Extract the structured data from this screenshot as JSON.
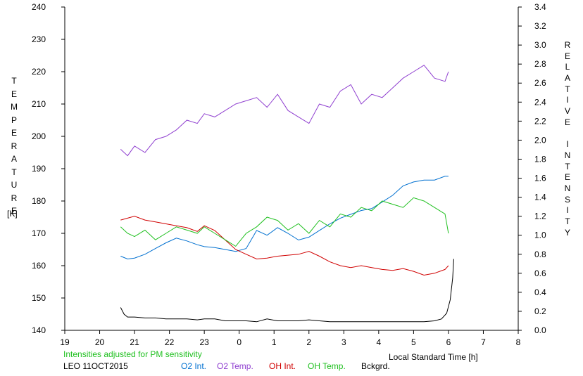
{
  "chart_data": {
    "type": "line",
    "xlabel": "Local Standard Time [h]",
    "ylabel_left": "TEMPERATURE",
    "ylabel_left_unit": "[K]",
    "ylabel_right": "RELATIVE INTENSITY",
    "x_ticks": [
      "19",
      "20",
      "21",
      "22",
      "23",
      "0",
      "1",
      "2",
      "3",
      "4",
      "5",
      "6",
      "7",
      "8"
    ],
    "xlim": [
      19,
      32
    ],
    "ylim_left": [
      140,
      240
    ],
    "ylim_right": [
      0,
      3.4
    ],
    "left_ticks": [
      "140",
      "150",
      "160",
      "170",
      "180",
      "190",
      "200",
      "210",
      "220",
      "230",
      "240"
    ],
    "right_ticks": [
      "0.0",
      "0.2",
      "0.4",
      "0.6",
      "0.8",
      "1.0",
      "1.2",
      "1.4",
      "1.6",
      "1.8",
      "2.0",
      "2.2",
      "2.4",
      "2.6",
      "2.8",
      "3.0",
      "3.2",
      "3.4"
    ],
    "note": "Intensities adjusted for PM sensitivity",
    "station": "LEO 11OCT2015",
    "grid": false,
    "series": [
      {
        "name": "O2 Int.",
        "axis": "right",
        "color": "#0070d0",
        "x": [
          20.6,
          20.8,
          21.0,
          21.3,
          21.6,
          21.9,
          22.2,
          22.5,
          22.8,
          23.0,
          23.3,
          23.6,
          23.9,
          24.2,
          24.5,
          24.8,
          25.1,
          25.4,
          25.7,
          26.0,
          26.3,
          26.6,
          26.9,
          27.2,
          27.5,
          27.8,
          28.1,
          28.4,
          28.7,
          29.0,
          29.3,
          29.6,
          29.9,
          30.0
        ],
        "y": [
          0.78,
          0.75,
          0.76,
          0.8,
          0.86,
          0.92,
          0.97,
          0.94,
          0.9,
          0.88,
          0.87,
          0.85,
          0.83,
          0.86,
          1.05,
          1.0,
          1.08,
          1.02,
          0.95,
          0.98,
          1.05,
          1.12,
          1.18,
          1.22,
          1.26,
          1.28,
          1.35,
          1.42,
          1.52,
          1.56,
          1.58,
          1.58,
          1.62,
          1.62
        ]
      },
      {
        "name": "O2 Temp.",
        "axis": "left",
        "color": "#9040d0",
        "x": [
          20.6,
          20.8,
          21.0,
          21.3,
          21.6,
          21.9,
          22.2,
          22.5,
          22.8,
          23.0,
          23.3,
          23.6,
          23.9,
          24.2,
          24.5,
          24.8,
          25.1,
          25.4,
          25.7,
          26.0,
          26.3,
          26.6,
          26.9,
          27.2,
          27.5,
          27.8,
          28.1,
          28.4,
          28.7,
          29.0,
          29.3,
          29.6,
          29.9,
          30.0
        ],
        "y": [
          196,
          194,
          197,
          195,
          199,
          200,
          202,
          205,
          204,
          207,
          206,
          208,
          210,
          211,
          212,
          209,
          213,
          208,
          206,
          204,
          210,
          209,
          214,
          216,
          210,
          213,
          212,
          215,
          218,
          220,
          222,
          218,
          217,
          220
        ]
      },
      {
        "name": "OH Int.",
        "axis": "right",
        "color": "#d00000",
        "x": [
          20.6,
          20.8,
          21.0,
          21.3,
          21.6,
          21.9,
          22.2,
          22.5,
          22.8,
          23.0,
          23.3,
          23.6,
          23.9,
          24.2,
          24.5,
          24.8,
          25.1,
          25.4,
          25.7,
          26.0,
          26.3,
          26.6,
          26.9,
          27.2,
          27.5,
          27.8,
          28.1,
          28.4,
          28.7,
          29.0,
          29.3,
          29.6,
          29.9,
          30.0
        ],
        "y": [
          1.16,
          1.18,
          1.2,
          1.16,
          1.14,
          1.12,
          1.1,
          1.08,
          1.04,
          1.1,
          1.05,
          0.95,
          0.85,
          0.8,
          0.75,
          0.76,
          0.78,
          0.79,
          0.8,
          0.83,
          0.78,
          0.72,
          0.68,
          0.66,
          0.68,
          0.66,
          0.64,
          0.63,
          0.65,
          0.62,
          0.58,
          0.6,
          0.64,
          0.68
        ]
      },
      {
        "name": "OH Temp.",
        "axis": "left",
        "color": "#20c020",
        "x": [
          20.6,
          20.8,
          21.0,
          21.3,
          21.6,
          21.9,
          22.2,
          22.5,
          22.8,
          23.0,
          23.3,
          23.6,
          23.9,
          24.2,
          24.5,
          24.8,
          25.1,
          25.4,
          25.7,
          26.0,
          26.3,
          26.6,
          26.9,
          27.2,
          27.5,
          27.8,
          28.1,
          28.4,
          28.7,
          29.0,
          29.3,
          29.6,
          29.9,
          30.0
        ],
        "y": [
          172,
          170,
          169,
          171,
          168,
          170,
          172,
          171,
          170,
          172,
          170,
          168,
          166,
          170,
          172,
          175,
          174,
          171,
          173,
          170,
          174,
          172,
          176,
          175,
          178,
          177,
          180,
          179,
          178,
          181,
          180,
          178,
          176,
          170
        ]
      },
      {
        "name": "Bckgrd.",
        "axis": "right",
        "color": "#000000",
        "x": [
          20.6,
          20.7,
          20.8,
          21.0,
          21.3,
          21.6,
          21.9,
          22.2,
          22.5,
          22.8,
          23.0,
          23.3,
          23.6,
          23.9,
          24.2,
          24.5,
          24.8,
          25.1,
          25.4,
          25.7,
          26.0,
          26.3,
          26.6,
          26.9,
          27.2,
          27.5,
          27.8,
          28.1,
          28.4,
          28.7,
          29.0,
          29.3,
          29.6,
          29.8,
          29.95,
          30.05,
          30.12,
          30.15
        ],
        "y": [
          0.24,
          0.17,
          0.14,
          0.14,
          0.13,
          0.13,
          0.12,
          0.12,
          0.12,
          0.11,
          0.12,
          0.12,
          0.1,
          0.1,
          0.1,
          0.09,
          0.12,
          0.1,
          0.1,
          0.1,
          0.11,
          0.1,
          0.09,
          0.09,
          0.09,
          0.09,
          0.09,
          0.09,
          0.09,
          0.09,
          0.09,
          0.09,
          0.1,
          0.12,
          0.18,
          0.32,
          0.55,
          0.75
        ]
      }
    ]
  }
}
